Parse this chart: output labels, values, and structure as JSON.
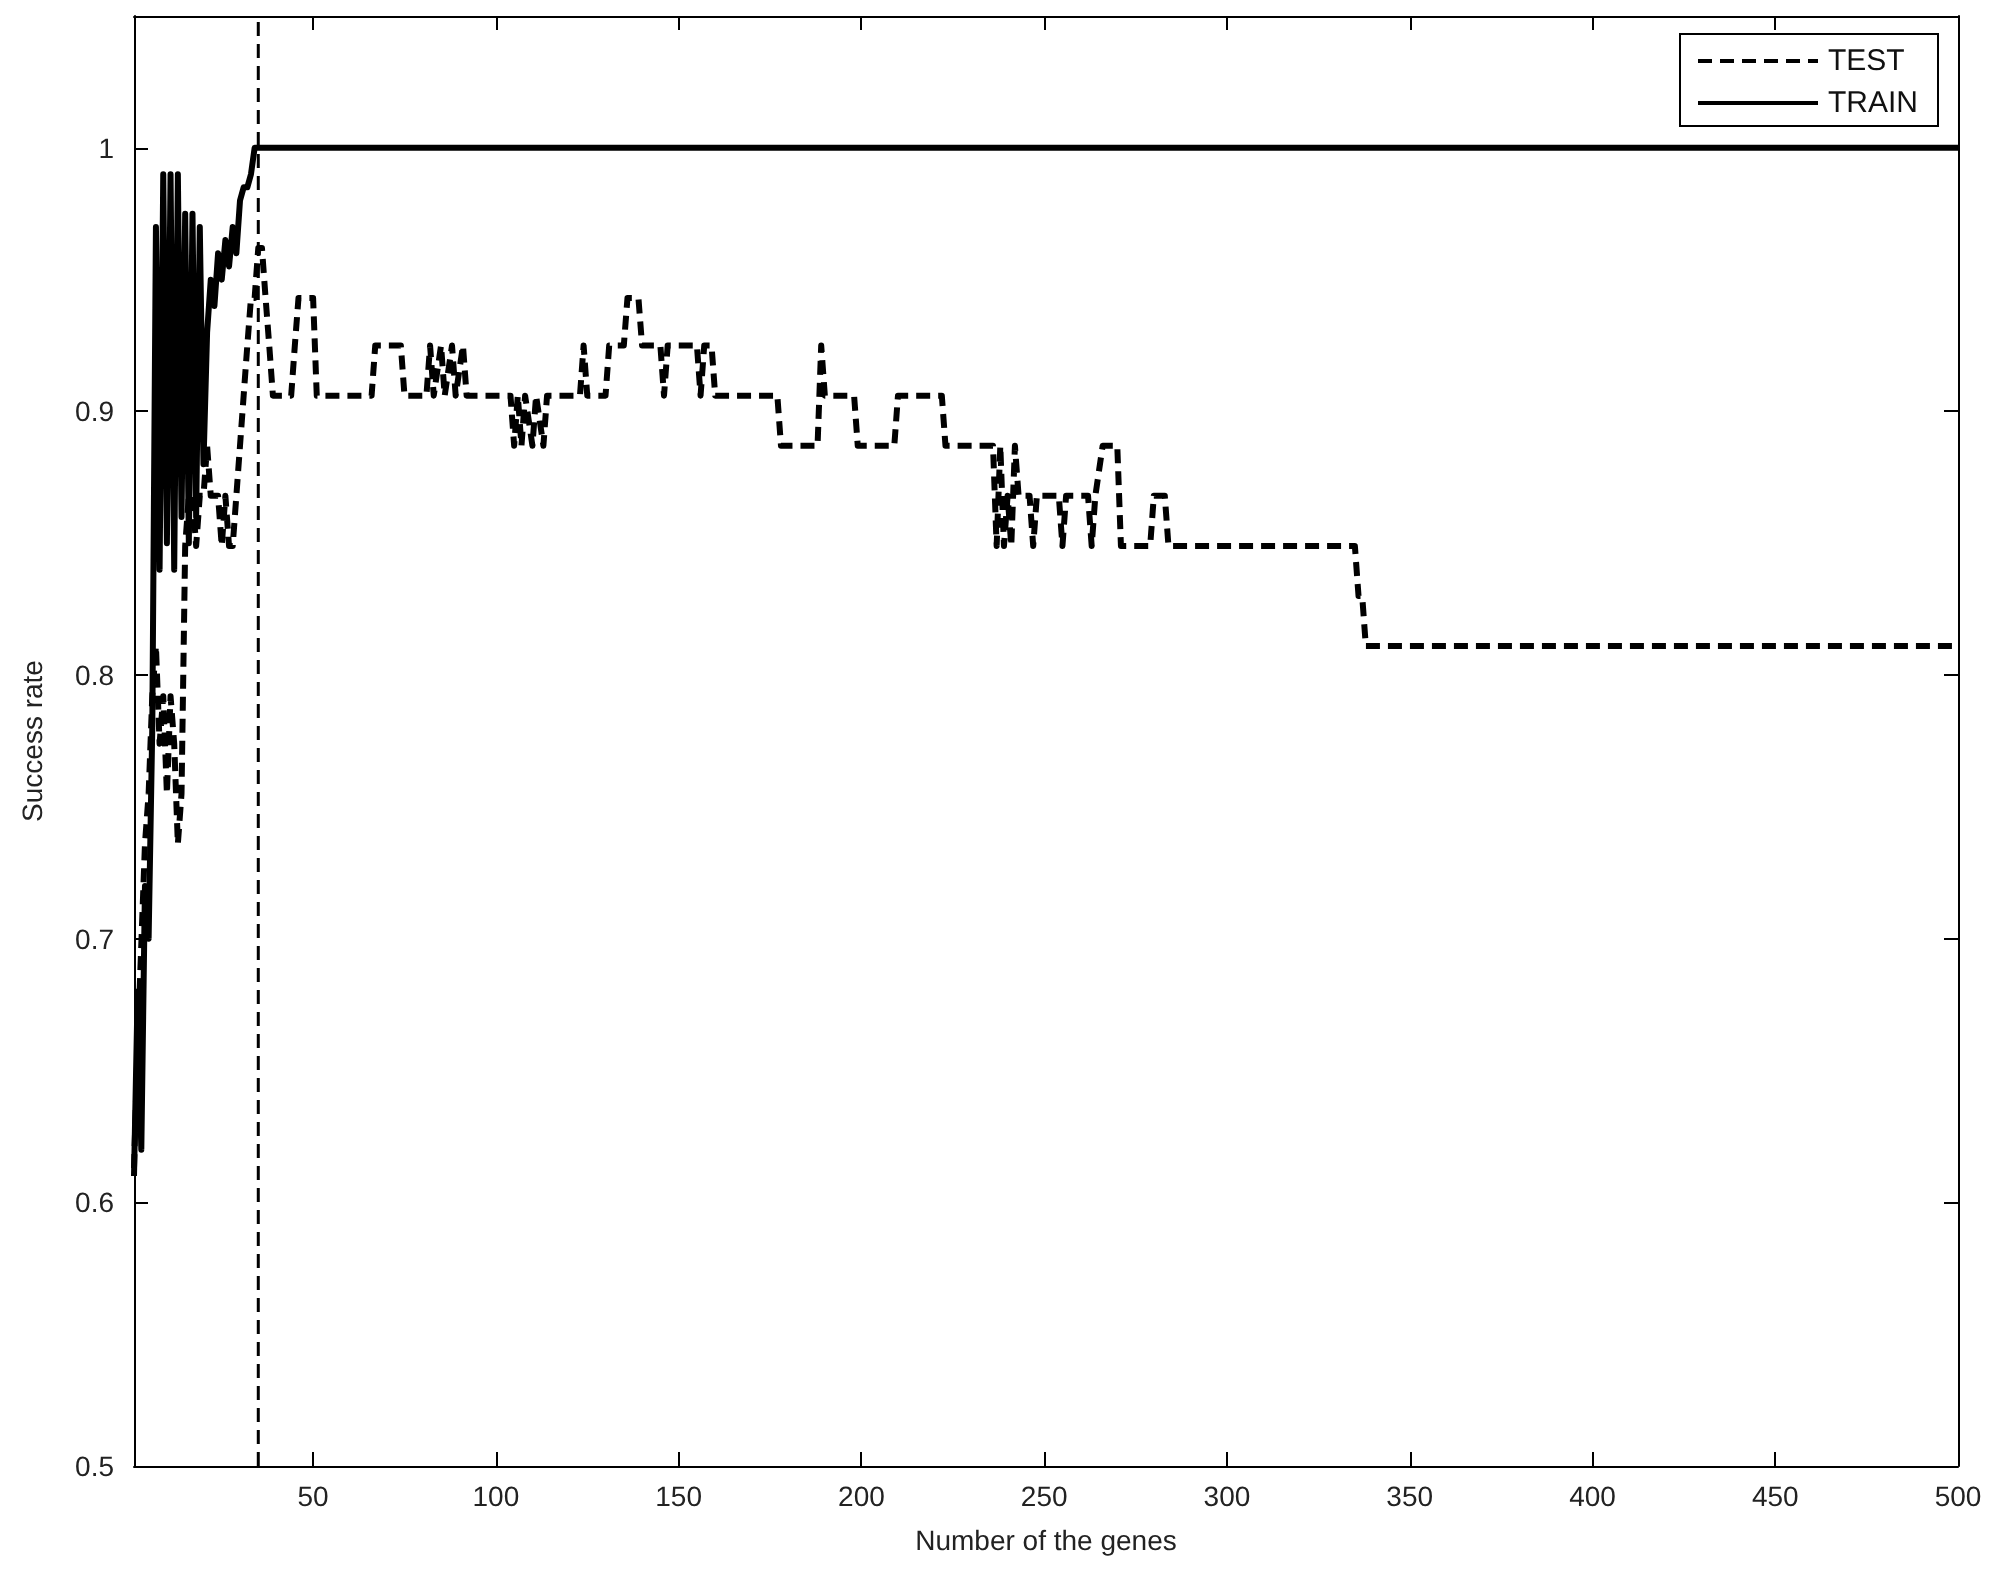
{
  "chart_data": {
    "type": "line",
    "xlabel": "Number of the genes",
    "ylabel": "Success rate",
    "xlim": [
      1,
      500
    ],
    "ylim": [
      0.5,
      1.05
    ],
    "xticks": [
      50,
      100,
      150,
      200,
      250,
      300,
      350,
      400,
      450,
      500
    ],
    "yticks": [
      0.5,
      0.6,
      0.7,
      0.8,
      0.9,
      1
    ],
    "grid": false,
    "legend": "top right",
    "marker": "none",
    "ref_lines": [
      {
        "axis": "x",
        "value": 35,
        "line_style": "dashed",
        "color": "#000000"
      }
    ],
    "series": [
      {
        "name": "TEST",
        "color": "#000000",
        "line_style": "dashed",
        "x": [
          1,
          2,
          3,
          4,
          5,
          6,
          7,
          8,
          9,
          10,
          11,
          12,
          13,
          14,
          15,
          16,
          17,
          18,
          19,
          20,
          21,
          22,
          23,
          24,
          25,
          26,
          27,
          28,
          29,
          30,
          31,
          32,
          33,
          34,
          35,
          36,
          37,
          38,
          39,
          44,
          45,
          46,
          50,
          51,
          66,
          67,
          74,
          75,
          81,
          82,
          83,
          85,
          86,
          88,
          89,
          91,
          92,
          104,
          105,
          106,
          107,
          108,
          110,
          111,
          113,
          114,
          123,
          124,
          125,
          130,
          131,
          135,
          136,
          139,
          140,
          145,
          146,
          147,
          155,
          156,
          157,
          159,
          160,
          177,
          178,
          188,
          189,
          190,
          198,
          199,
          209,
          210,
          222,
          223,
          236,
          237,
          238,
          239,
          240,
          241,
          242,
          243,
          246,
          247,
          248,
          254,
          255,
          256,
          262,
          263,
          264,
          266,
          270,
          271,
          279,
          280,
          283,
          284,
          335,
          336,
          337,
          338,
          500
        ],
        "values": [
          0.613,
          0.66,
          0.698,
          0.736,
          0.755,
          0.792,
          0.811,
          0.774,
          0.792,
          0.755,
          0.792,
          0.774,
          0.736,
          0.755,
          0.849,
          0.868,
          0.868,
          0.849,
          0.868,
          0.868,
          0.887,
          0.868,
          0.868,
          0.868,
          0.849,
          0.868,
          0.849,
          0.849,
          0.868,
          0.887,
          0.906,
          0.925,
          0.943,
          0.943,
          0.962,
          0.962,
          0.943,
          0.925,
          0.906,
          0.906,
          0.925,
          0.943,
          0.943,
          0.906,
          0.906,
          0.925,
          0.925,
          0.906,
          0.906,
          0.925,
          0.906,
          0.925,
          0.906,
          0.925,
          0.906,
          0.925,
          0.906,
          0.906,
          0.887,
          0.906,
          0.887,
          0.906,
          0.887,
          0.906,
          0.887,
          0.906,
          0.906,
          0.925,
          0.906,
          0.906,
          0.925,
          0.925,
          0.943,
          0.943,
          0.925,
          0.925,
          0.906,
          0.925,
          0.925,
          0.906,
          0.925,
          0.925,
          0.906,
          0.906,
          0.887,
          0.887,
          0.925,
          0.906,
          0.906,
          0.887,
          0.887,
          0.906,
          0.906,
          0.887,
          0.887,
          0.849,
          0.887,
          0.849,
          0.868,
          0.849,
          0.887,
          0.868,
          0.868,
          0.849,
          0.868,
          0.868,
          0.849,
          0.868,
          0.868,
          0.849,
          0.868,
          0.887,
          0.887,
          0.849,
          0.849,
          0.868,
          0.868,
          0.849,
          0.849,
          0.83,
          0.83,
          0.811,
          0.811
        ]
      },
      {
        "name": "TRAIN",
        "color": "#000000",
        "line_style": "solid",
        "x": [
          1,
          2,
          3,
          4,
          5,
          6,
          7,
          8,
          9,
          10,
          11,
          12,
          13,
          14,
          15,
          16,
          17,
          18,
          19,
          20,
          21,
          22,
          23,
          24,
          25,
          26,
          27,
          28,
          29,
          30,
          31,
          32,
          33,
          34,
          500
        ],
        "values": [
          0.61,
          0.68,
          0.62,
          0.72,
          0.7,
          0.78,
          0.97,
          0.84,
          0.99,
          0.85,
          0.99,
          0.84,
          0.99,
          0.86,
          0.975,
          0.85,
          0.975,
          0.86,
          0.97,
          0.88,
          0.93,
          0.95,
          0.94,
          0.96,
          0.95,
          0.965,
          0.955,
          0.97,
          0.96,
          0.98,
          0.985,
          0.985,
          0.99,
          1,
          1
        ]
      }
    ]
  }
}
